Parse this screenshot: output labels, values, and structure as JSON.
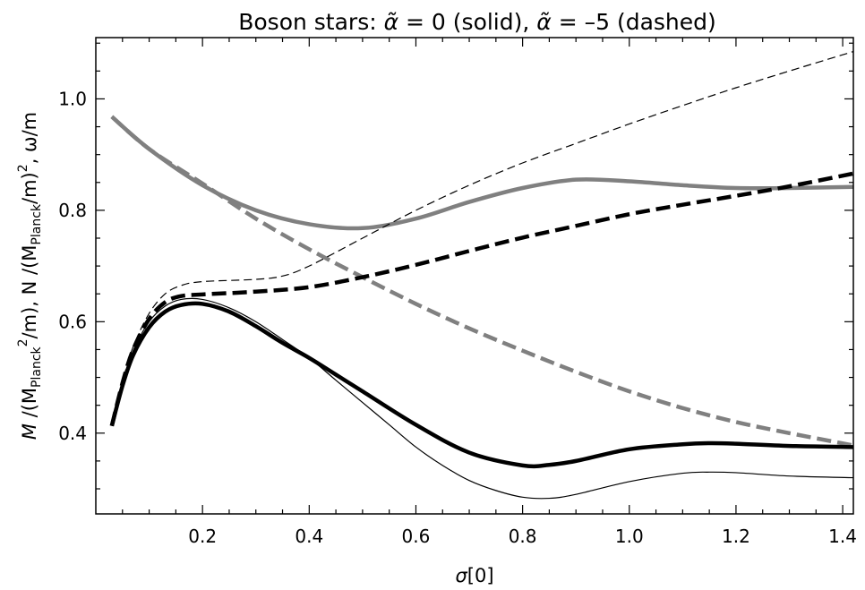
{
  "chart_data": {
    "type": "line",
    "title": {
      "prefix": "Boson stars: ",
      "a1_sym": "α̃",
      "a1_rest": " = 0 (solid), ",
      "a2_sym": "α̃",
      "a2_rest": " = –5 (dashed)"
    },
    "xlabel": {
      "sym": "σ",
      "rest": "[0]"
    },
    "ylabel": {
      "p1": "M",
      "p2": " /(M",
      "p3": "Planck",
      "p4": "2",
      "p5": "/m),  N /(M",
      "p6": "Planck",
      "p7": "/m)",
      "p8": "2",
      "p9": ",  ω/m"
    },
    "xlim": [
      0.0,
      1.42
    ],
    "ylim": [
      0.255,
      1.11
    ],
    "x_ticks": [
      0.2,
      0.4,
      0.6,
      0.8,
      1.0,
      1.2,
      1.4
    ],
    "x_tick_labels": [
      "0.2",
      "0.4",
      "0.6",
      "0.8",
      "1.0",
      "1.2",
      "1.4"
    ],
    "y_ticks": [
      0.4,
      0.6,
      0.8,
      1.0
    ],
    "y_tick_labels": [
      "0.4",
      "0.6",
      "0.8",
      "1.0"
    ],
    "grid": false,
    "legend": "none",
    "series": [
      {
        "color": "#808080",
        "width": 4.5,
        "dash": "solid",
        "points": [
          [
            0.03,
            0.968
          ],
          [
            0.1,
            0.91
          ],
          [
            0.2,
            0.845
          ],
          [
            0.3,
            0.8
          ],
          [
            0.4,
            0.775
          ],
          [
            0.5,
            0.768
          ],
          [
            0.6,
            0.785
          ],
          [
            0.7,
            0.815
          ],
          [
            0.8,
            0.84
          ],
          [
            0.9,
            0.855
          ],
          [
            1.0,
            0.852
          ],
          [
            1.1,
            0.845
          ],
          [
            1.2,
            0.84
          ],
          [
            1.3,
            0.84
          ],
          [
            1.42,
            0.842
          ]
        ]
      },
      {
        "color": "#808080",
        "width": 4.5,
        "dash": "dashed",
        "points": [
          [
            0.03,
            0.968
          ],
          [
            0.1,
            0.91
          ],
          [
            0.2,
            0.848
          ],
          [
            0.3,
            0.785
          ],
          [
            0.4,
            0.73
          ],
          [
            0.5,
            0.68
          ],
          [
            0.6,
            0.632
          ],
          [
            0.7,
            0.588
          ],
          [
            0.8,
            0.548
          ],
          [
            0.9,
            0.51
          ],
          [
            1.0,
            0.475
          ],
          [
            1.1,
            0.445
          ],
          [
            1.2,
            0.42
          ],
          [
            1.3,
            0.4
          ],
          [
            1.42,
            0.378
          ]
        ]
      },
      {
        "color": "#000000",
        "width": 4.5,
        "dash": "solid",
        "points": [
          [
            0.03,
            0.413
          ],
          [
            0.05,
            0.485
          ],
          [
            0.07,
            0.54
          ],
          [
            0.1,
            0.59
          ],
          [
            0.13,
            0.618
          ],
          [
            0.16,
            0.63
          ],
          [
            0.2,
            0.632
          ],
          [
            0.25,
            0.618
          ],
          [
            0.3,
            0.592
          ],
          [
            0.35,
            0.562
          ],
          [
            0.4,
            0.535
          ],
          [
            0.45,
            0.505
          ],
          [
            0.5,
            0.475
          ],
          [
            0.6,
            0.415
          ],
          [
            0.7,
            0.365
          ],
          [
            0.8,
            0.342
          ],
          [
            0.85,
            0.343
          ],
          [
            0.9,
            0.35
          ],
          [
            1.0,
            0.371
          ],
          [
            1.1,
            0.38
          ],
          [
            1.15,
            0.382
          ],
          [
            1.2,
            0.381
          ],
          [
            1.3,
            0.377
          ],
          [
            1.42,
            0.375
          ]
        ]
      },
      {
        "color": "#000000",
        "width": 4.5,
        "dash": "dashed",
        "points": [
          [
            0.03,
            0.413
          ],
          [
            0.05,
            0.49
          ],
          [
            0.07,
            0.55
          ],
          [
            0.1,
            0.605
          ],
          [
            0.13,
            0.635
          ],
          [
            0.16,
            0.646
          ],
          [
            0.2,
            0.649
          ],
          [
            0.3,
            0.654
          ],
          [
            0.4,
            0.662
          ],
          [
            0.5,
            0.68
          ],
          [
            0.6,
            0.702
          ],
          [
            0.7,
            0.727
          ],
          [
            0.8,
            0.751
          ],
          [
            0.9,
            0.772
          ],
          [
            1.0,
            0.793
          ],
          [
            1.1,
            0.81
          ],
          [
            1.2,
            0.826
          ],
          [
            1.3,
            0.843
          ],
          [
            1.42,
            0.866
          ]
        ]
      },
      {
        "color": "#000000",
        "width": 1.2,
        "dash": "solid",
        "points": [
          [
            0.03,
            0.413
          ],
          [
            0.05,
            0.49
          ],
          [
            0.07,
            0.548
          ],
          [
            0.1,
            0.6
          ],
          [
            0.13,
            0.628
          ],
          [
            0.16,
            0.64
          ],
          [
            0.2,
            0.64
          ],
          [
            0.25,
            0.625
          ],
          [
            0.3,
            0.6
          ],
          [
            0.35,
            0.568
          ],
          [
            0.4,
            0.535
          ],
          [
            0.45,
            0.495
          ],
          [
            0.5,
            0.455
          ],
          [
            0.55,
            0.415
          ],
          [
            0.6,
            0.375
          ],
          [
            0.65,
            0.342
          ],
          [
            0.7,
            0.315
          ],
          [
            0.75,
            0.297
          ],
          [
            0.8,
            0.285
          ],
          [
            0.85,
            0.283
          ],
          [
            0.9,
            0.29
          ],
          [
            1.0,
            0.313
          ],
          [
            1.1,
            0.328
          ],
          [
            1.15,
            0.33
          ],
          [
            1.2,
            0.329
          ],
          [
            1.3,
            0.323
          ],
          [
            1.42,
            0.32
          ]
        ]
      },
      {
        "color": "#000000",
        "width": 1.2,
        "dash": "dashed",
        "points": [
          [
            0.03,
            0.413
          ],
          [
            0.05,
            0.492
          ],
          [
            0.07,
            0.555
          ],
          [
            0.1,
            0.615
          ],
          [
            0.13,
            0.65
          ],
          [
            0.16,
            0.665
          ],
          [
            0.2,
            0.672
          ],
          [
            0.3,
            0.676
          ],
          [
            0.35,
            0.682
          ],
          [
            0.4,
            0.7
          ],
          [
            0.5,
            0.75
          ],
          [
            0.6,
            0.8
          ],
          [
            0.7,
            0.845
          ],
          [
            0.8,
            0.885
          ],
          [
            0.9,
            0.92
          ],
          [
            1.0,
            0.955
          ],
          [
            1.1,
            0.988
          ],
          [
            1.2,
            1.02
          ],
          [
            1.3,
            1.05
          ],
          [
            1.42,
            1.085
          ]
        ]
      }
    ]
  }
}
